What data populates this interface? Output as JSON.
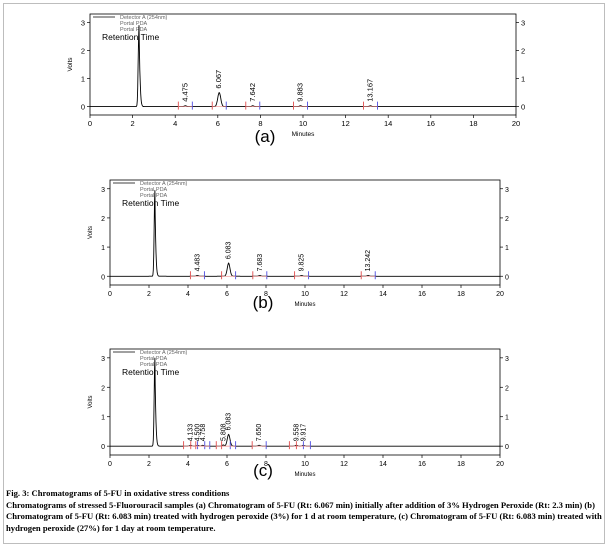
{
  "figure": {
    "caption_title": "Fig. 3: Chromatograms of 5-FU in oxidative stress conditions",
    "caption_body": "Chromatograms of stressed 5-Fluorouracil samples (a) Chromatogram of 5-FU (Rt: 6.067 min) initially after addition of 3% Hydrogen Peroxide (Rt: 2.3 min) (b) Chromatogram of 5-FU (Rt: 6.083 min) treated with hydrogen peroxide (3%) for 1 d at room temperature, (c) Chromatogram of 5-FU (Rt: 6.083 min) treated with hydrogen peroxide (27%) for 1 day at room temperature."
  },
  "chart_data": [
    {
      "type": "line",
      "panel_label": "(a)",
      "xlabel": "Minutes",
      "ylabel": "Volts",
      "xlim": [
        0,
        20
      ],
      "ylim": [
        -0.3,
        3.3
      ],
      "x_ticks": [
        "0",
        "2",
        "4",
        "6",
        "8",
        "10",
        "12",
        "14",
        "16",
        "18",
        "20"
      ],
      "y_ticks_left": [
        "0",
        "1",
        "2",
        "3"
      ],
      "y_ticks_right": [
        "0",
        "1",
        "2",
        "3"
      ],
      "legend": [
        "Detector A (254nm)",
        "Portal PDA",
        "Portal PDA"
      ],
      "annotation": "Retention Time",
      "peaks": [
        {
          "rt": 2.3,
          "height": 2.9,
          "label": ""
        },
        {
          "rt": 4.475,
          "height": 0.03,
          "label": "4.475"
        },
        {
          "rt": 6.067,
          "height": 0.5,
          "label": "6.067"
        },
        {
          "rt": 7.642,
          "height": 0.03,
          "label": "7.642"
        },
        {
          "rt": 9.883,
          "height": 0.03,
          "label": "9.883"
        },
        {
          "rt": 13.167,
          "height": 0.03,
          "label": "13.167"
        }
      ]
    },
    {
      "type": "line",
      "panel_label": "(b)",
      "xlabel": "Minutes",
      "ylabel": "Volts",
      "xlim": [
        0,
        20
      ],
      "ylim": [
        -0.3,
        3.3
      ],
      "x_ticks": [
        "0",
        "2",
        "4",
        "6",
        "8",
        "10",
        "12",
        "14",
        "16",
        "18",
        "20"
      ],
      "y_ticks_left": [
        "0",
        "1",
        "2",
        "3"
      ],
      "y_ticks_right": [
        "0",
        "1",
        "2",
        "3"
      ],
      "legend": [
        "Detector A (254nm)",
        "Portal PDA",
        "Portal PDA"
      ],
      "annotation": "Retention Time",
      "peaks": [
        {
          "rt": 2.3,
          "height": 2.95,
          "label": ""
        },
        {
          "rt": 4.483,
          "height": 0.03,
          "label": "4.483"
        },
        {
          "rt": 6.083,
          "height": 0.45,
          "label": "6.083"
        },
        {
          "rt": 7.683,
          "height": 0.03,
          "label": "7.683"
        },
        {
          "rt": 9.825,
          "height": 0.03,
          "label": "9.825"
        },
        {
          "rt": 13.242,
          "height": 0.03,
          "label": "13.242"
        }
      ]
    },
    {
      "type": "line",
      "panel_label": "(c)",
      "xlabel": "Minutes",
      "ylabel": "Volts",
      "xlim": [
        0,
        20
      ],
      "ylim": [
        -0.3,
        3.3
      ],
      "x_ticks": [
        "0",
        "2",
        "4",
        "6",
        "8",
        "10",
        "12",
        "14",
        "16",
        "18",
        "20"
      ],
      "y_ticks_left": [
        "0",
        "1",
        "2",
        "3"
      ],
      "y_ticks_right": [
        "0",
        "1",
        "2",
        "3"
      ],
      "legend": [
        "Detector A (254nm)",
        "Portal PDA",
        "Portal PDA"
      ],
      "annotation": "Retention Time",
      "peaks": [
        {
          "rt": 2.3,
          "height": 3.0,
          "label": ""
        },
        {
          "rt": 4.133,
          "height": 0.03,
          "label": "4.133"
        },
        {
          "rt": 4.5,
          "height": 0.03,
          "label": "4.500"
        },
        {
          "rt": 4.758,
          "height": 0.03,
          "label": "4.758"
        },
        {
          "rt": 5.808,
          "height": 0.04,
          "label": "5.808"
        },
        {
          "rt": 6.083,
          "height": 0.4,
          "label": "6.083"
        },
        {
          "rt": 7.65,
          "height": 0.03,
          "label": "7.650"
        },
        {
          "rt": 9.558,
          "height": 0.03,
          "label": "9.558"
        },
        {
          "rt": 9.917,
          "height": 0.03,
          "label": "9.917"
        }
      ]
    }
  ]
}
